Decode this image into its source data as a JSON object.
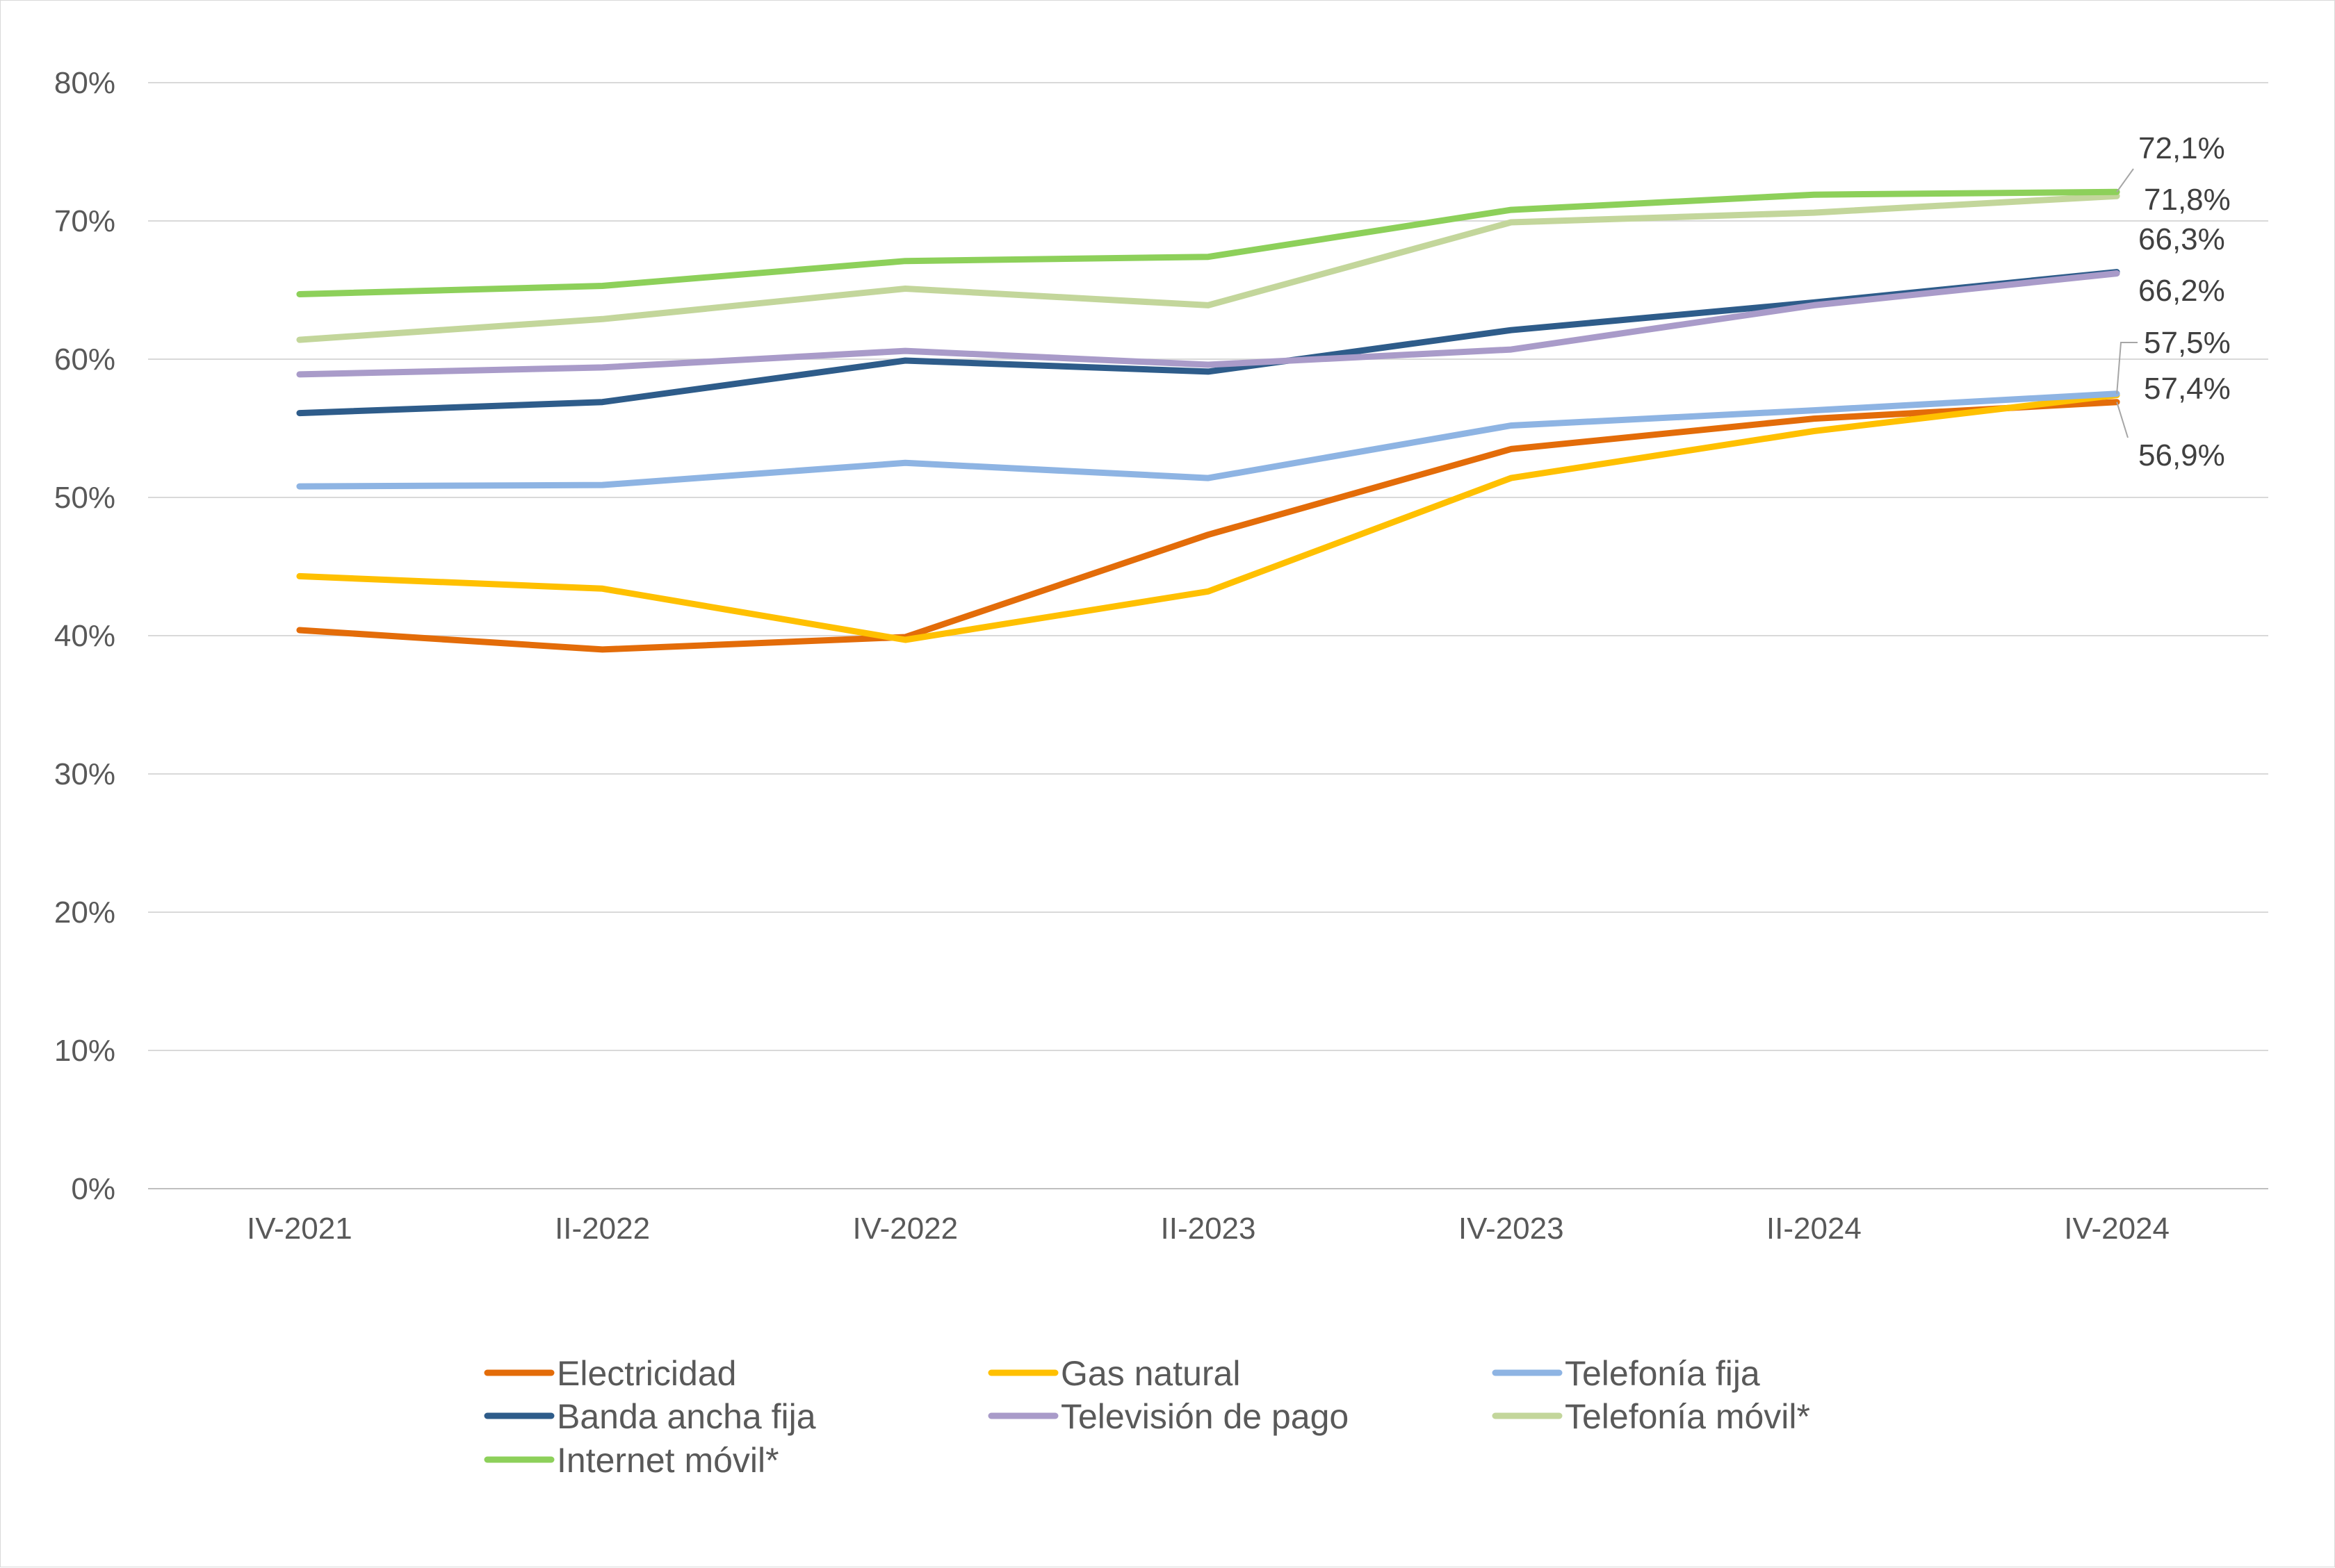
{
  "chart_data": {
    "type": "line",
    "title": "",
    "xlabel": "",
    "ylabel": "",
    "ylim": [
      0,
      80
    ],
    "y_ticks": [
      0,
      10,
      20,
      30,
      40,
      50,
      60,
      70,
      80
    ],
    "y_tick_labels": [
      "0%",
      "10%",
      "20%",
      "30%",
      "40%",
      "50%",
      "60%",
      "70%",
      "80%"
    ],
    "categories": [
      "IV-2021",
      "II-2022",
      "IV-2022",
      "II-2023",
      "IV-2023",
      "II-2024",
      "IV-2024"
    ],
    "grid": "horizontal",
    "legend_position": "bottom",
    "series": [
      {
        "name": "Electricidad",
        "color": "#e36c09",
        "values": [
          40.4,
          39.0,
          39.9,
          47.3,
          53.5,
          55.7,
          56.9
        ],
        "end_label": "56,9%"
      },
      {
        "name": "Gas natural",
        "color": "#ffc000",
        "values": [
          44.3,
          43.4,
          39.7,
          43.2,
          51.4,
          54.8,
          57.4
        ],
        "end_label": "57,4%"
      },
      {
        "name": "Telefonía fija",
        "color": "#8eb4e3",
        "values": [
          50.8,
          50.9,
          52.5,
          51.4,
          55.2,
          56.3,
          57.5
        ],
        "end_label": "57,5%"
      },
      {
        "name": "Banda ancha fija",
        "color": "#2e5c8a",
        "values": [
          56.1,
          56.9,
          59.9,
          59.1,
          62.1,
          64.1,
          66.3
        ],
        "end_label": "66,3%"
      },
      {
        "name": "Televisión de pago",
        "color": "#a99bc9",
        "values": [
          58.9,
          59.4,
          60.6,
          59.6,
          60.7,
          63.9,
          66.2
        ],
        "end_label": "66,2%"
      },
      {
        "name": "Telefonía móvil*",
        "color": "#c3d69b",
        "values": [
          61.4,
          62.9,
          65.1,
          63.9,
          69.9,
          70.6,
          71.8
        ],
        "end_label": "71,8%"
      },
      {
        "name": "Internet móvil*",
        "color": "#8dd05a",
        "values": [
          64.7,
          65.3,
          67.1,
          67.4,
          70.8,
          71.9,
          72.1
        ],
        "end_label": "72,1%"
      }
    ]
  }
}
